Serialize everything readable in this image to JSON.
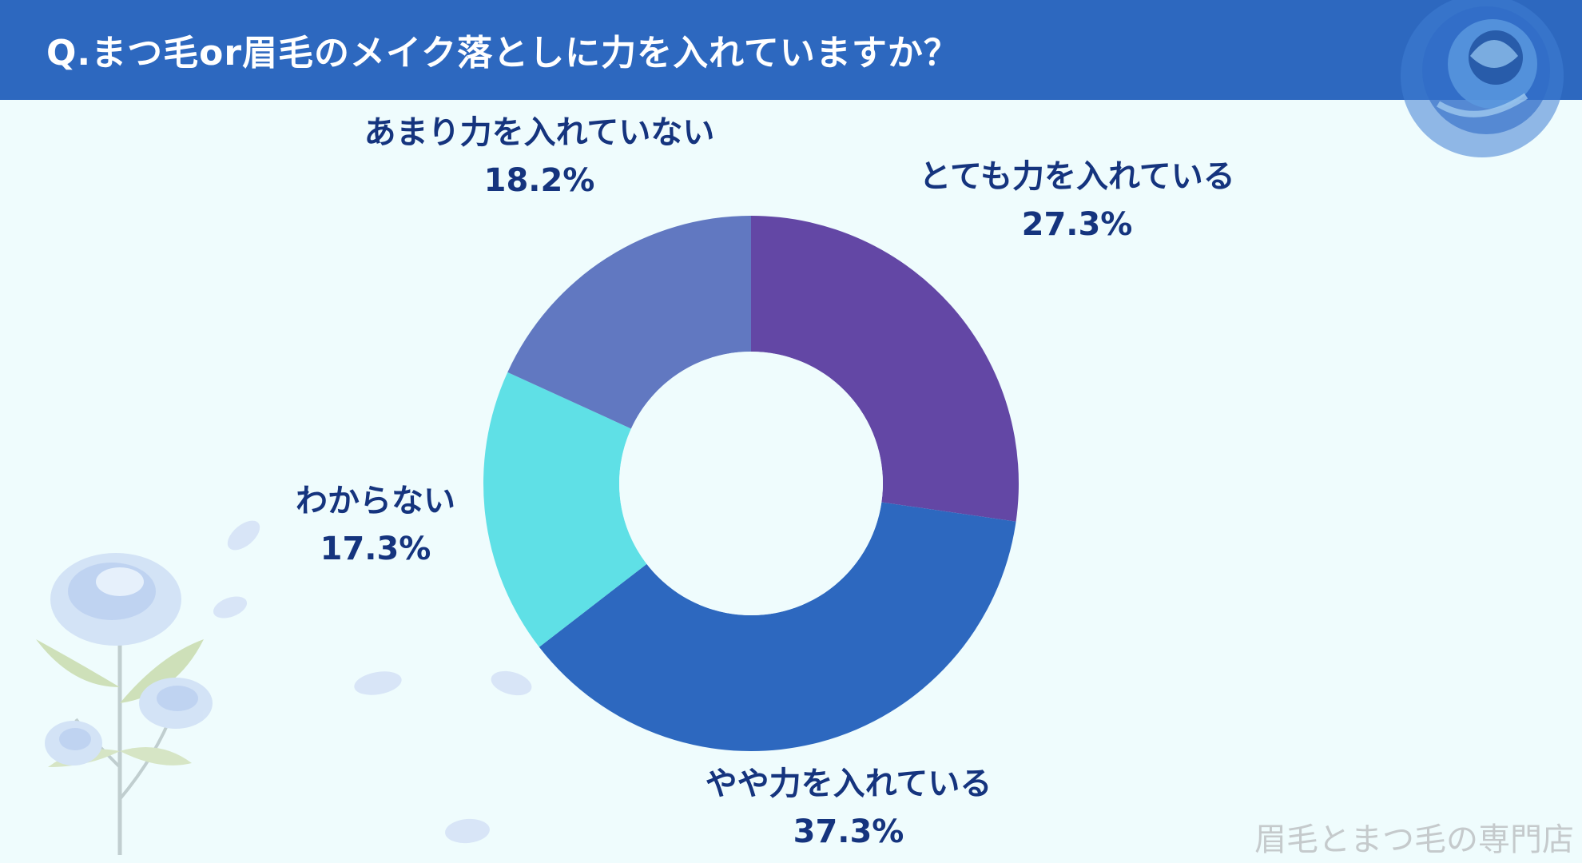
{
  "header": {
    "title": "Q.まつ毛or眉毛のメイク落としに力を入れていますか？"
  },
  "watermark": "眉毛とまつ毛の専門店",
  "colors": {
    "header_bg": "#2d68bf",
    "page_bg": "#effcfd",
    "label_text": "#15347e"
  },
  "chart_data": {
    "type": "pie",
    "style": "donut",
    "start_angle_deg": 0,
    "direction": "clockwise",
    "slices": [
      {
        "label": "とても力を入れている",
        "value": 27.3,
        "display": "27.3%",
        "color": "#6347a5"
      },
      {
        "label": "やや力を入れている",
        "value": 37.3,
        "display": "37.3%",
        "color": "#2d68bf"
      },
      {
        "label": "わからない",
        "value": 17.3,
        "display": "17.3%",
        "color": "#5fe0e6"
      },
      {
        "label": "あまり力を入れていない",
        "value": 18.2,
        "display": "18.2%",
        "color": "#6178c1"
      }
    ]
  }
}
